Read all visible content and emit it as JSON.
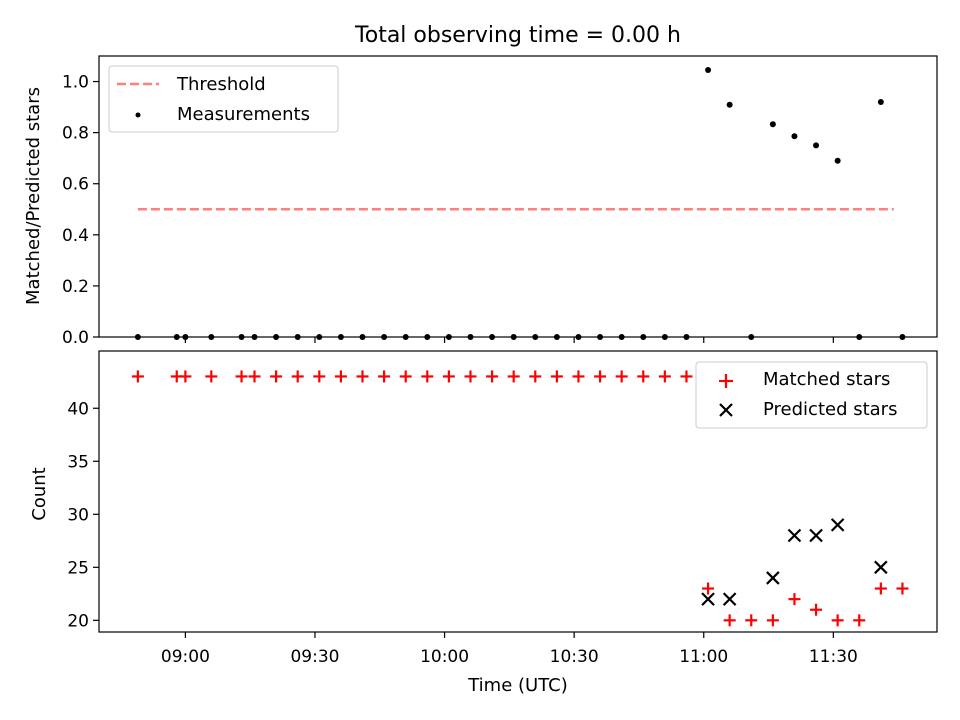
{
  "figure_title": "Total observing time = 0.00 h",
  "colors": {
    "threshold": "#ff7f7f",
    "measurement": "#000000",
    "matched": "#ff0000",
    "predicted": "#000000",
    "axis": "#000000",
    "legend_border": "#cccccc"
  },
  "chart_data": [
    {
      "type": "scatter",
      "title": "Total observing time = 0.00 h",
      "xlabel": "",
      "ylabel": "Matched/Predicted stars",
      "ylim": [
        0,
        1.1
      ],
      "yticks": [
        0.0,
        0.2,
        0.4,
        0.6,
        0.8,
        1.0
      ],
      "ytick_labels": [
        "0.0",
        "0.2",
        "0.4",
        "0.6",
        "0.8",
        "1.0"
      ],
      "xlim": [
        "08:40",
        "11:54"
      ],
      "xticks": [
        "09:00",
        "09:30",
        "10:00",
        "10:30",
        "11:00",
        "11:30"
      ],
      "legend": {
        "position": "upper left",
        "entries": [
          "Threshold",
          "Measurements"
        ]
      },
      "series": [
        {
          "name": "Threshold",
          "kind": "dashed-line",
          "x": [
            "08:49",
            "11:44"
          ],
          "y": [
            0.5,
            0.5
          ]
        },
        {
          "name": "Measurements",
          "kind": "dots",
          "x": [
            "08:49",
            "08:58",
            "09:00",
            "09:06",
            "09:13",
            "09:16",
            "09:21",
            "09:26",
            "09:31",
            "09:36",
            "09:41",
            "09:46",
            "09:51",
            "09:56",
            "10:01",
            "10:06",
            "10:11",
            "10:16",
            "10:21",
            "10:26",
            "10:31",
            "10:36",
            "10:41",
            "10:46",
            "10:51",
            "10:56",
            "11:01",
            "11:06",
            "11:11",
            "11:16",
            "11:21",
            "11:26",
            "11:31",
            "11:36",
            "11:41",
            "11:46"
          ],
          "y": [
            0,
            0,
            0,
            0,
            0,
            0,
            0,
            0,
            0,
            0,
            0,
            0,
            0,
            0,
            0,
            0,
            0,
            0,
            0,
            0,
            0,
            0,
            0,
            0,
            0,
            0,
            1.045,
            0.909,
            0,
            0.833,
            0.786,
            0.75,
            0.69,
            0,
            0.92,
            0
          ]
        }
      ]
    },
    {
      "type": "scatter",
      "title": "",
      "xlabel": "Time (UTC)",
      "ylabel": "Count",
      "ylim": [
        18.9,
        45.4
      ],
      "yticks": [
        20,
        25,
        30,
        35,
        40
      ],
      "ytick_labels": [
        "20",
        "25",
        "30",
        "35",
        "40"
      ],
      "xlim": [
        "08:40",
        "11:54"
      ],
      "xticks": [
        "09:00",
        "09:30",
        "10:00",
        "10:30",
        "11:00",
        "11:30"
      ],
      "xtick_labels": [
        "09:00",
        "09:30",
        "10:00",
        "10:30",
        "11:00",
        "11:30"
      ],
      "legend": {
        "position": "upper right",
        "entries": [
          "Matched stars",
          "Predicted stars"
        ]
      },
      "series": [
        {
          "name": "Matched stars",
          "marker": "+",
          "x": [
            "08:49",
            "08:58",
            "09:00",
            "09:06",
            "09:13",
            "09:16",
            "09:21",
            "09:26",
            "09:31",
            "09:36",
            "09:41",
            "09:46",
            "09:51",
            "09:56",
            "10:01",
            "10:06",
            "10:11",
            "10:16",
            "10:21",
            "10:26",
            "10:31",
            "10:36",
            "10:41",
            "10:46",
            "10:51",
            "10:56",
            "11:01",
            "11:06",
            "11:11",
            "11:16",
            "11:21",
            "11:26",
            "11:31",
            "11:36",
            "11:41",
            "11:46"
          ],
          "y": [
            43,
            43,
            43,
            43,
            43,
            43,
            43,
            43,
            43,
            43,
            43,
            43,
            43,
            43,
            43,
            43,
            43,
            43,
            43,
            43,
            43,
            43,
            43,
            43,
            43,
            43,
            23,
            20,
            20,
            20,
            22,
            21,
            20,
            20,
            23,
            23
          ]
        },
        {
          "name": "Predicted stars",
          "marker": "x",
          "x": [
            "11:01",
            "11:06",
            "11:16",
            "11:21",
            "11:26",
            "11:31",
            "11:41"
          ],
          "y": [
            22,
            22,
            24,
            28,
            28,
            29,
            25
          ]
        }
      ]
    }
  ]
}
